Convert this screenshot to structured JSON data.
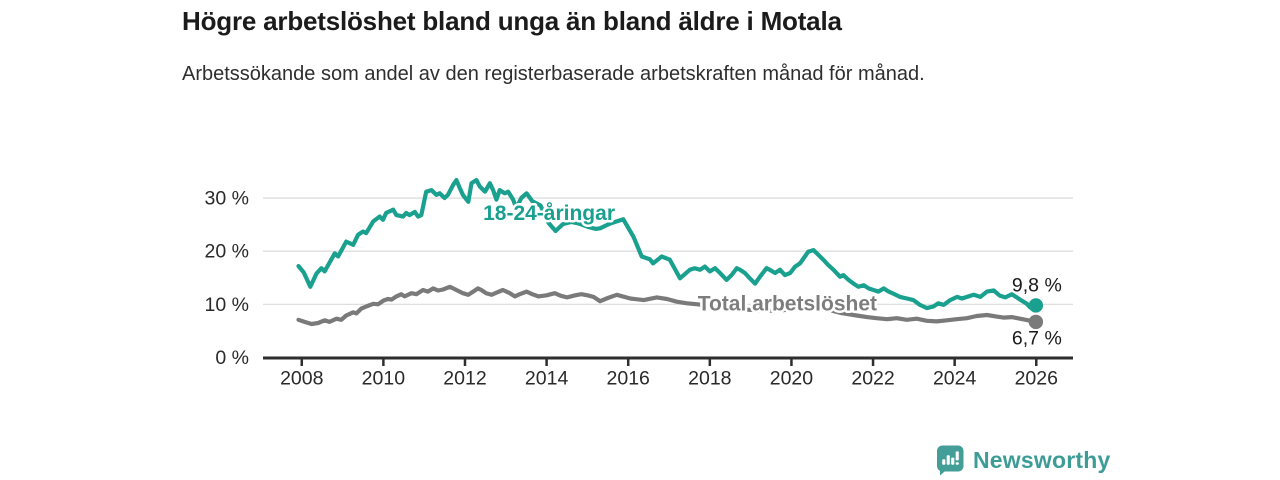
{
  "header": {
    "title": "Högre arbetslöshet bland unga än bland äldre i Motala",
    "subtitle": "Arbetssökande som andel av den registerbaserade arbetskraften månad för månad."
  },
  "footer": {
    "brand": "Newsworthy"
  },
  "colors": {
    "young_line": "#1AA08F",
    "total_line": "#7a7a7a",
    "total_label": "#7d7d7d",
    "axis": "#2e2e2e",
    "grid": "#dedede",
    "tick_text": "#2a2a2a",
    "end_label_text": "#1b1b1b",
    "brand_teal": "#449E98"
  },
  "chart_data": {
    "type": "line",
    "title": "Högre arbetslöshet bland unga än bland äldre i Motala",
    "subtitle": "Arbetssökande som andel av den registerbaserade arbetskraften månad för månad.",
    "xlabel": "",
    "ylabel": "",
    "x_axis": {
      "lim": [
        2007.05,
        2026.9
      ],
      "ticks": [
        2008,
        2010,
        2012,
        2014,
        2016,
        2018,
        2020,
        2022,
        2024,
        2026
      ]
    },
    "y_axis": {
      "lim": [
        0,
        34.9
      ],
      "ticks": [
        {
          "value": 0,
          "label": "0 %"
        },
        {
          "value": 10,
          "label": "10 %"
        },
        {
          "value": 20,
          "label": "20 %"
        },
        {
          "value": 30,
          "label": "30 %"
        }
      ],
      "gridlines": [
        10,
        20,
        30
      ]
    },
    "grid": "horizontal-only",
    "legend": "inline-series-labels",
    "series": [
      {
        "name": "18-24-åringar",
        "color": "#1AA08F",
        "label_anchor": {
          "x": 2014.06,
          "y": 27.3
        },
        "end_label": "9,8 %",
        "end_label_position": "above",
        "end_marker": true,
        "points": [
          [
            2007.92,
            17.2
          ],
          [
            2008.05,
            16.0
          ],
          [
            2008.21,
            13.3
          ],
          [
            2008.36,
            15.8
          ],
          [
            2008.48,
            16.8
          ],
          [
            2008.56,
            16.2
          ],
          [
            2008.81,
            19.6
          ],
          [
            2008.89,
            19.0
          ],
          [
            2009.09,
            21.8
          ],
          [
            2009.26,
            21.2
          ],
          [
            2009.38,
            23.1
          ],
          [
            2009.5,
            23.7
          ],
          [
            2009.58,
            23.4
          ],
          [
            2009.75,
            25.6
          ],
          [
            2009.91,
            26.5
          ],
          [
            2009.99,
            25.9
          ],
          [
            2010.07,
            27.2
          ],
          [
            2010.24,
            27.8
          ],
          [
            2010.32,
            26.8
          ],
          [
            2010.48,
            26.5
          ],
          [
            2010.56,
            27.2
          ],
          [
            2010.64,
            26.8
          ],
          [
            2010.77,
            27.4
          ],
          [
            2010.85,
            26.5
          ],
          [
            2010.93,
            26.8
          ],
          [
            2011.05,
            31.2
          ],
          [
            2011.18,
            31.5
          ],
          [
            2011.3,
            30.6
          ],
          [
            2011.38,
            30.9
          ],
          [
            2011.5,
            30.0
          ],
          [
            2011.58,
            30.6
          ],
          [
            2011.71,
            32.5
          ],
          [
            2011.79,
            33.4
          ],
          [
            2011.87,
            31.9
          ],
          [
            2011.95,
            30.6
          ],
          [
            2012.08,
            29.3
          ],
          [
            2012.16,
            32.8
          ],
          [
            2012.28,
            33.4
          ],
          [
            2012.36,
            32.2
          ],
          [
            2012.49,
            31.2
          ],
          [
            2012.61,
            32.8
          ],
          [
            2012.69,
            31.5
          ],
          [
            2012.77,
            29.7
          ],
          [
            2012.85,
            31.5
          ],
          [
            2012.97,
            30.9
          ],
          [
            2013.06,
            31.2
          ],
          [
            2013.18,
            29.7
          ],
          [
            2013.26,
            28.1
          ],
          [
            2013.38,
            30.0
          ],
          [
            2013.51,
            30.9
          ],
          [
            2013.65,
            29.4
          ],
          [
            2013.85,
            28.6
          ],
          [
            2014.05,
            25.3
          ],
          [
            2014.22,
            23.8
          ],
          [
            2014.4,
            25.1
          ],
          [
            2014.6,
            25.5
          ],
          [
            2014.8,
            25.2
          ],
          [
            2015.0,
            24.6
          ],
          [
            2015.2,
            24.2
          ],
          [
            2015.31,
            24.3
          ],
          [
            2015.55,
            25.2
          ],
          [
            2015.88,
            26.0
          ],
          [
            2016.13,
            22.7
          ],
          [
            2016.33,
            19.0
          ],
          [
            2016.53,
            18.5
          ],
          [
            2016.61,
            17.7
          ],
          [
            2016.82,
            19.0
          ],
          [
            2017.02,
            18.4
          ],
          [
            2017.27,
            14.9
          ],
          [
            2017.51,
            16.5
          ],
          [
            2017.63,
            16.8
          ],
          [
            2017.76,
            16.5
          ],
          [
            2017.88,
            17.1
          ],
          [
            2018.0,
            16.2
          ],
          [
            2018.13,
            16.8
          ],
          [
            2018.25,
            15.9
          ],
          [
            2018.41,
            14.6
          ],
          [
            2018.53,
            15.5
          ],
          [
            2018.66,
            16.8
          ],
          [
            2018.74,
            16.5
          ],
          [
            2018.86,
            15.9
          ],
          [
            2018.98,
            14.9
          ],
          [
            2019.11,
            13.9
          ],
          [
            2019.23,
            15.2
          ],
          [
            2019.39,
            16.8
          ],
          [
            2019.47,
            16.5
          ],
          [
            2019.6,
            15.9
          ],
          [
            2019.72,
            16.5
          ],
          [
            2019.84,
            15.5
          ],
          [
            2019.97,
            15.9
          ],
          [
            2020.09,
            17.1
          ],
          [
            2020.21,
            17.7
          ],
          [
            2020.33,
            19.0
          ],
          [
            2020.41,
            19.9
          ],
          [
            2020.54,
            20.2
          ],
          [
            2020.66,
            19.3
          ],
          [
            2020.78,
            18.4
          ],
          [
            2020.9,
            17.4
          ],
          [
            2021.03,
            16.5
          ],
          [
            2021.19,
            15.2
          ],
          [
            2021.27,
            15.5
          ],
          [
            2021.4,
            14.6
          ],
          [
            2021.52,
            13.9
          ],
          [
            2021.64,
            13.3
          ],
          [
            2021.77,
            13.6
          ],
          [
            2021.89,
            13.0
          ],
          [
            2022.01,
            12.7
          ],
          [
            2022.13,
            12.4
          ],
          [
            2022.26,
            13.0
          ],
          [
            2022.38,
            12.4
          ],
          [
            2022.5,
            12.0
          ],
          [
            2022.66,
            11.4
          ],
          [
            2022.83,
            11.1
          ],
          [
            2022.99,
            10.8
          ],
          [
            2023.15,
            9.9
          ],
          [
            2023.32,
            9.3
          ],
          [
            2023.48,
            9.6
          ],
          [
            2023.6,
            10.2
          ],
          [
            2023.73,
            9.9
          ],
          [
            2023.89,
            10.8
          ],
          [
            2024.06,
            11.4
          ],
          [
            2024.18,
            11.1
          ],
          [
            2024.3,
            11.4
          ],
          [
            2024.47,
            11.8
          ],
          [
            2024.63,
            11.4
          ],
          [
            2024.79,
            12.4
          ],
          [
            2024.96,
            12.6
          ],
          [
            2025.11,
            11.6
          ],
          [
            2025.24,
            11.3
          ],
          [
            2025.4,
            11.9
          ],
          [
            2025.52,
            11.3
          ],
          [
            2025.64,
            10.7
          ],
          [
            2025.77,
            10.1
          ],
          [
            2025.85,
            9.4
          ],
          [
            2025.99,
            9.8
          ]
        ]
      },
      {
        "name": "Total arbetslöshet",
        "color": "#7a7a7a",
        "label_color": "#7d7d7d",
        "label_anchor": {
          "x": 2019.9,
          "y": 10.3
        },
        "end_label": "6,7 %",
        "end_label_position": "below",
        "end_marker": true,
        "points": [
          [
            2007.92,
            7.1
          ],
          [
            2008.07,
            6.7
          ],
          [
            2008.24,
            6.3
          ],
          [
            2008.4,
            6.5
          ],
          [
            2008.56,
            7.0
          ],
          [
            2008.68,
            6.7
          ],
          [
            2008.85,
            7.3
          ],
          [
            2008.97,
            7.1
          ],
          [
            2009.09,
            7.9
          ],
          [
            2009.26,
            8.5
          ],
          [
            2009.34,
            8.3
          ],
          [
            2009.46,
            9.2
          ],
          [
            2009.58,
            9.6
          ],
          [
            2009.75,
            10.1
          ],
          [
            2009.87,
            10.0
          ],
          [
            2010.0,
            10.7
          ],
          [
            2010.11,
            11.0
          ],
          [
            2010.2,
            10.9
          ],
          [
            2010.32,
            11.5
          ],
          [
            2010.44,
            11.9
          ],
          [
            2010.52,
            11.5
          ],
          [
            2010.69,
            12.1
          ],
          [
            2010.81,
            11.9
          ],
          [
            2010.97,
            12.7
          ],
          [
            2011.09,
            12.4
          ],
          [
            2011.22,
            13.0
          ],
          [
            2011.34,
            12.6
          ],
          [
            2011.46,
            12.8
          ],
          [
            2011.63,
            13.3
          ],
          [
            2011.79,
            12.7
          ],
          [
            2011.95,
            12.1
          ],
          [
            2012.08,
            11.8
          ],
          [
            2012.2,
            12.4
          ],
          [
            2012.32,
            13.0
          ],
          [
            2012.4,
            12.7
          ],
          [
            2012.52,
            12.1
          ],
          [
            2012.65,
            11.8
          ],
          [
            2012.77,
            12.2
          ],
          [
            2012.93,
            12.7
          ],
          [
            2013.1,
            12.1
          ],
          [
            2013.22,
            11.5
          ],
          [
            2013.34,
            11.9
          ],
          [
            2013.51,
            12.4
          ],
          [
            2013.65,
            11.9
          ],
          [
            2013.8,
            11.5
          ],
          [
            2014.0,
            11.7
          ],
          [
            2014.2,
            12.1
          ],
          [
            2014.35,
            11.6
          ],
          [
            2014.5,
            11.3
          ],
          [
            2014.7,
            11.7
          ],
          [
            2014.85,
            11.9
          ],
          [
            2015.0,
            11.7
          ],
          [
            2015.15,
            11.4
          ],
          [
            2015.31,
            10.6
          ],
          [
            2015.5,
            11.2
          ],
          [
            2015.72,
            11.8
          ],
          [
            2016.05,
            11.1
          ],
          [
            2016.38,
            10.8
          ],
          [
            2016.7,
            11.3
          ],
          [
            2016.95,
            11.0
          ],
          [
            2017.19,
            10.5
          ],
          [
            2017.44,
            10.2
          ],
          [
            2017.7,
            10.0
          ],
          [
            2018.0,
            9.7
          ],
          [
            2018.3,
            9.5
          ],
          [
            2018.6,
            9.3
          ],
          [
            2018.9,
            9.0
          ],
          [
            2019.2,
            8.9
          ],
          [
            2019.5,
            8.8
          ],
          [
            2019.8,
            8.9
          ],
          [
            2020.1,
            9.3
          ],
          [
            2020.4,
            9.6
          ],
          [
            2020.7,
            9.4
          ],
          [
            2021.0,
            8.8
          ],
          [
            2021.2,
            8.4
          ],
          [
            2021.36,
            8.2
          ],
          [
            2021.6,
            7.9
          ],
          [
            2021.85,
            7.6
          ],
          [
            2022.09,
            7.4
          ],
          [
            2022.34,
            7.2
          ],
          [
            2022.58,
            7.4
          ],
          [
            2022.83,
            7.1
          ],
          [
            2023.07,
            7.3
          ],
          [
            2023.32,
            6.9
          ],
          [
            2023.56,
            6.8
          ],
          [
            2023.81,
            7.0
          ],
          [
            2024.05,
            7.2
          ],
          [
            2024.3,
            7.4
          ],
          [
            2024.54,
            7.8
          ],
          [
            2024.79,
            8.0
          ],
          [
            2025.03,
            7.7
          ],
          [
            2025.2,
            7.5
          ],
          [
            2025.4,
            7.6
          ],
          [
            2025.6,
            7.3
          ],
          [
            2025.8,
            7.0
          ],
          [
            2025.99,
            6.7
          ]
        ]
      }
    ]
  }
}
